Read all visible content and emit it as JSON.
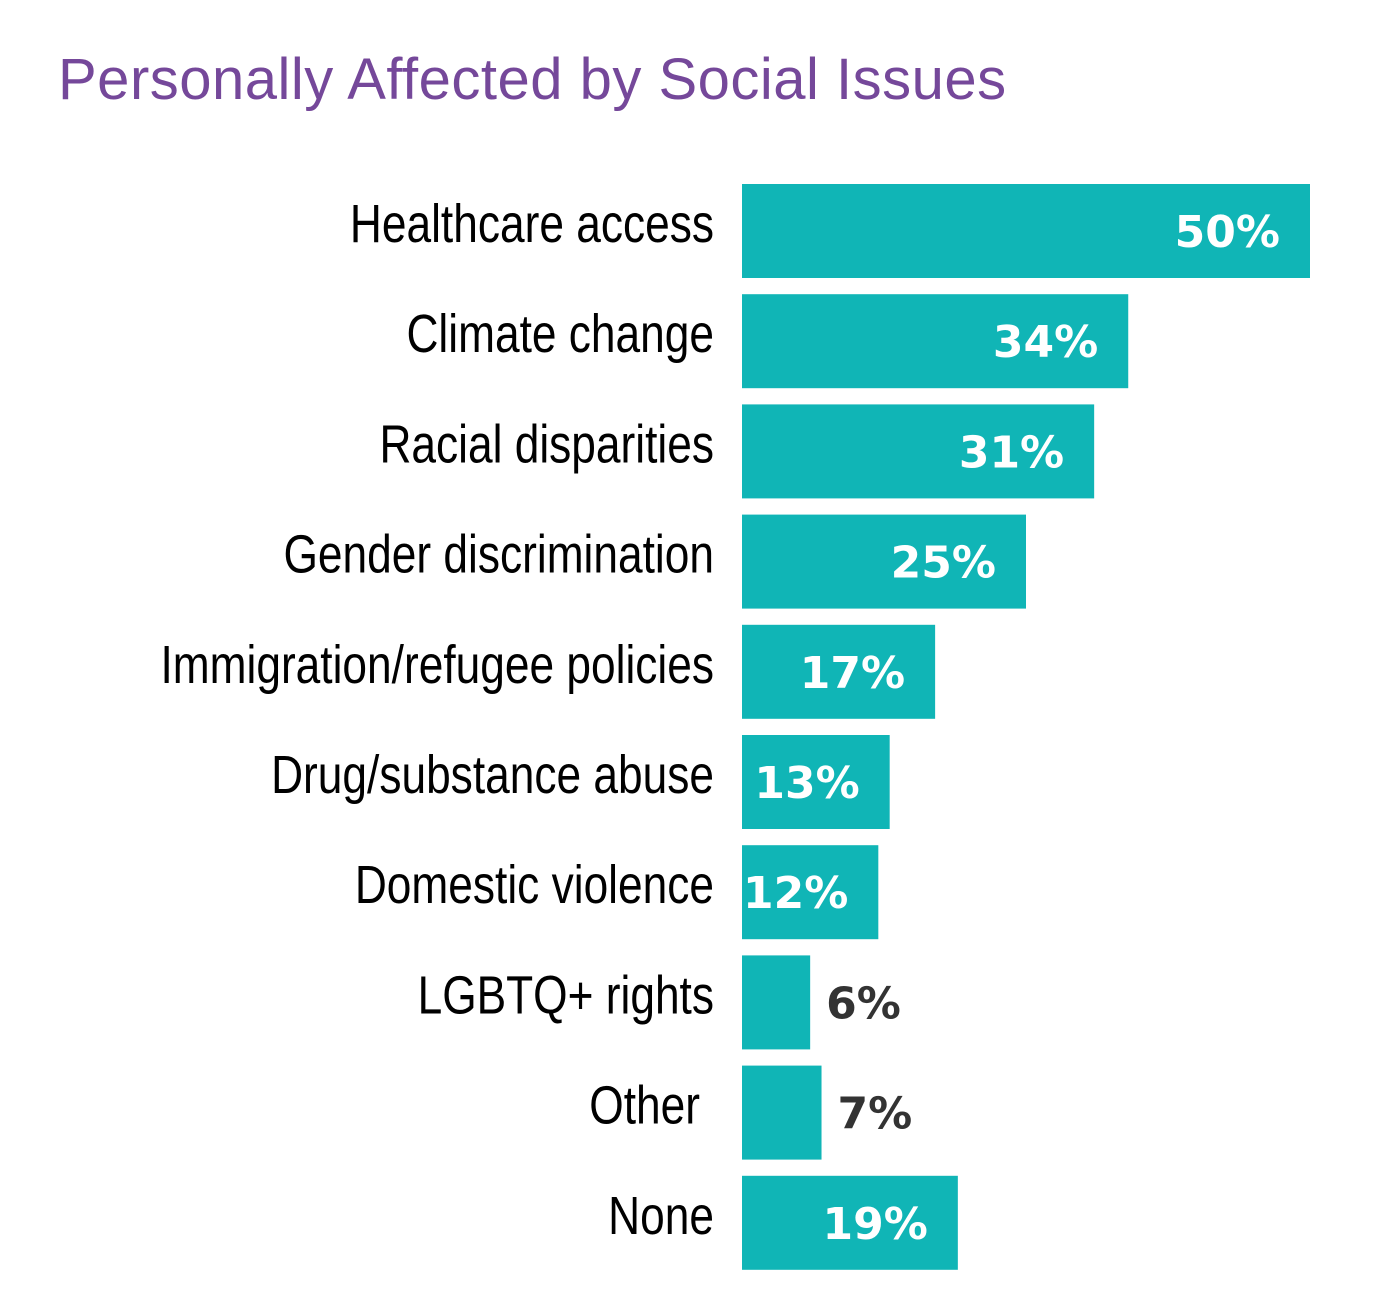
{
  "chart_data": {
    "type": "bar",
    "orientation": "horizontal",
    "title": "Personally Affected by Social Issues",
    "categories": [
      "Healthcare access",
      "Climate change",
      "Racial disparities",
      "Gender discrimination",
      "Immigration/refugee policies",
      "Drug/substance abuse",
      "Domestic violence",
      "LGBTQ+ rights",
      "Other",
      "None"
    ],
    "values": [
      50,
      34,
      31,
      25,
      17,
      13,
      12,
      6,
      7,
      19
    ],
    "value_labels": [
      "50%",
      "34%",
      "31%",
      "25%",
      "17%",
      "13%",
      "12%",
      "6%",
      "7%",
      "19%"
    ],
    "xlabel": "",
    "ylabel": "",
    "xlim": [
      0,
      50
    ],
    "grid": false,
    "colors": {
      "bar": "#10b5b6",
      "title": "#75489a",
      "label_inside": "#ffffff",
      "label_outside": "#333333"
    }
  }
}
